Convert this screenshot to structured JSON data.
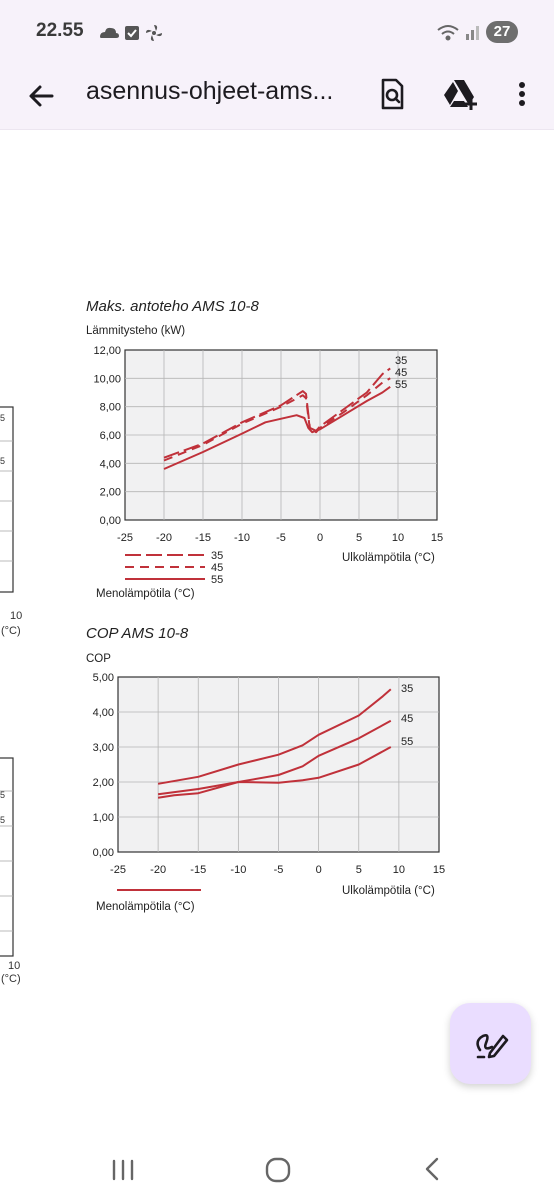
{
  "status_bar": {
    "time": "22.55",
    "icons": [
      "cloud-icon",
      "checkbox-icon",
      "fan-icon"
    ],
    "right_icons": [
      "wifi-icon",
      "signal-icon"
    ],
    "battery": "27"
  },
  "app_bar": {
    "title": "asennus-ohjeet-ams...",
    "actions": [
      "search-document-icon",
      "add-to-drive-icon",
      "more-vert-icon"
    ]
  },
  "left_fragments": {
    "top": {
      "ticks": [
        "5",
        "5"
      ],
      "x_tick": "10",
      "unit": "(°C)"
    },
    "bottom": {
      "ticks": [
        "5",
        "5"
      ],
      "x_tick": "10",
      "unit": "(°C)"
    }
  },
  "charts": {
    "power": {
      "title": "Maks. antoteho AMS 10-8",
      "ylabel": "Lämmitysteho (kW)",
      "xlabel": "Ulkolämpötila (°C)",
      "legend_title": "Menolämpötila (°C)",
      "y_ticks": [
        "12,00",
        "10,00",
        "8,00",
        "6,00",
        "4,00",
        "2,00",
        "0,00"
      ],
      "x_ticks": [
        "-25",
        "-20",
        "-15",
        "-10",
        "-5",
        "0",
        "5",
        "10",
        "15"
      ],
      "series_labels": [
        "35",
        "45",
        "55"
      ],
      "legend_labels": [
        "35",
        "45",
        "55"
      ]
    },
    "cop": {
      "title": "COP AMS 10-8",
      "ylabel": "COP",
      "xlabel": "Ulkolämpötila (°C)",
      "legend_title": "Menolämpötila (°C)",
      "y_ticks": [
        "5,00",
        "4,00",
        "3,00",
        "2,00",
        "1,00",
        "0,00"
      ],
      "x_ticks": [
        "-25",
        "-20",
        "-15",
        "-10",
        "-5",
        "0",
        "5",
        "10",
        "15"
      ],
      "series_labels": [
        "35",
        "45",
        "55"
      ]
    }
  },
  "chart_data": [
    {
      "type": "line",
      "title": "Maks. antoteho AMS 10-8",
      "xlabel": "Ulkolämpötila (°C)",
      "ylabel": "Lämmitysteho (kW)",
      "xlim": [
        -25,
        15
      ],
      "ylim": [
        0,
        12
      ],
      "grid": true,
      "legend_title": "Menolämpötila (°C)",
      "legend_placement": "bottom-left",
      "series": [
        {
          "name": "35",
          "style": "long-dash",
          "x": [
            -20,
            -15,
            -10,
            -5,
            -2.2,
            -1.8,
            -1.3,
            -0.5,
            0,
            3,
            6,
            8,
            9
          ],
          "y": [
            4.4,
            5.4,
            6.9,
            8.1,
            9.1,
            8.9,
            6.5,
            6.3,
            6.6,
            7.8,
            9.0,
            10.3,
            10.7
          ]
        },
        {
          "name": "45",
          "style": "short-dash",
          "x": [
            -20,
            -15,
            -10,
            -5,
            -2.2,
            -1.8,
            -1.3,
            -0.5,
            0,
            3,
            6,
            8,
            9
          ],
          "y": [
            4.2,
            5.3,
            6.8,
            8.0,
            8.8,
            8.6,
            6.4,
            6.2,
            6.5,
            7.6,
            8.8,
            9.7,
            10.0
          ]
        },
        {
          "name": "55",
          "style": "solid",
          "x": [
            -20,
            -15,
            -10,
            -7,
            -3,
            -2,
            -1.5,
            -1,
            0,
            3,
            6,
            8,
            9
          ],
          "y": [
            3.6,
            4.8,
            6.1,
            6.9,
            7.4,
            7.2,
            6.5,
            6.2,
            6.4,
            7.4,
            8.4,
            9.0,
            9.4
          ]
        }
      ],
      "series_color": "#c0313a"
    },
    {
      "type": "line",
      "title": "COP AMS 10-8",
      "xlabel": "Ulkolämpötila (°C)",
      "ylabel": "COP",
      "xlim": [
        -25,
        15
      ],
      "ylim": [
        0,
        5
      ],
      "grid": true,
      "legend_title": "Menolämpötila (°C)",
      "legend_placement": "bottom-left",
      "series": [
        {
          "name": "35",
          "x": [
            -20,
            -15,
            -10,
            -5,
            -2,
            0,
            5,
            8,
            9
          ],
          "y": [
            1.95,
            2.15,
            2.5,
            2.78,
            3.05,
            3.35,
            3.9,
            4.45,
            4.65
          ]
        },
        {
          "name": "45",
          "x": [
            -20,
            -15,
            -10,
            -5,
            -2,
            0,
            5,
            9
          ],
          "y": [
            1.65,
            1.8,
            2.0,
            2.2,
            2.45,
            2.75,
            3.25,
            3.75
          ]
        },
        {
          "name": "55",
          "x": [
            -20,
            -18,
            -15,
            -10,
            -5,
            -2,
            0,
            5,
            9
          ],
          "y": [
            1.55,
            1.62,
            1.68,
            2.0,
            1.98,
            2.05,
            2.12,
            2.5,
            3.0
          ]
        }
      ],
      "series_color": "#c0313a"
    }
  ],
  "nav_bar": {
    "buttons": [
      "recent-apps-icon",
      "home-icon",
      "back-icon"
    ]
  }
}
